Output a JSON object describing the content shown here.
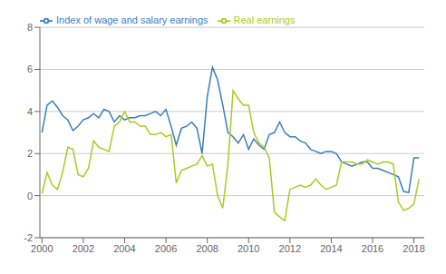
{
  "chart_data": {
    "type": "line",
    "x": [
      2000.0,
      2000.25,
      2000.5,
      2000.75,
      2001.0,
      2001.25,
      2001.5,
      2001.75,
      2002.0,
      2002.25,
      2002.5,
      2002.75,
      2003.0,
      2003.25,
      2003.5,
      2003.75,
      2004.0,
      2004.25,
      2004.5,
      2004.75,
      2005.0,
      2005.25,
      2005.5,
      2005.75,
      2006.0,
      2006.25,
      2006.5,
      2006.75,
      2007.0,
      2007.25,
      2007.5,
      2007.75,
      2008.0,
      2008.25,
      2008.5,
      2008.75,
      2009.0,
      2009.25,
      2009.5,
      2009.75,
      2010.0,
      2010.25,
      2010.5,
      2010.75,
      2011.0,
      2011.25,
      2011.5,
      2011.75,
      2012.0,
      2012.25,
      2012.5,
      2012.75,
      2013.0,
      2013.25,
      2013.5,
      2013.75,
      2014.0,
      2014.25,
      2014.5,
      2014.75,
      2015.0,
      2015.25,
      2015.5,
      2015.75,
      2016.0,
      2016.25,
      2016.5,
      2016.75,
      2017.0,
      2017.25,
      2017.5,
      2017.75,
      2018.0,
      2018.25
    ],
    "series": [
      {
        "name": "Index of wage and salary earnings",
        "color": "#3a7ebf",
        "values": [
          3.0,
          4.3,
          4.5,
          4.2,
          3.8,
          3.6,
          3.1,
          3.3,
          3.6,
          3.7,
          3.9,
          3.7,
          4.1,
          4.0,
          3.5,
          3.8,
          3.6,
          3.7,
          3.7,
          3.8,
          3.8,
          3.9,
          4.0,
          3.8,
          4.1,
          3.3,
          2.4,
          3.2,
          3.3,
          3.5,
          3.2,
          2.0,
          4.7,
          6.1,
          5.5,
          4.3,
          3.0,
          2.8,
          2.5,
          2.9,
          2.2,
          2.7,
          2.4,
          2.2,
          2.9,
          3.0,
          3.5,
          3.0,
          2.8,
          2.8,
          2.6,
          2.5,
          2.2,
          2.1,
          2.0,
          2.1,
          2.1,
          2.0,
          1.6,
          1.5,
          1.4,
          1.5,
          1.6,
          1.6,
          1.3,
          1.3,
          1.2,
          1.1,
          1.0,
          0.9,
          0.2,
          0.15,
          1.8,
          1.8
        ]
      },
      {
        "name": "Real earnings",
        "color": "#aacc22",
        "values": [
          0.1,
          1.1,
          0.5,
          0.3,
          1.1,
          2.3,
          2.2,
          1.0,
          0.9,
          1.3,
          2.6,
          2.3,
          2.2,
          2.1,
          3.3,
          3.5,
          4.0,
          3.5,
          3.5,
          3.3,
          3.3,
          2.9,
          2.9,
          3.0,
          2.8,
          2.9,
          0.6,
          1.2,
          1.3,
          1.4,
          1.5,
          1.9,
          1.4,
          1.5,
          0.0,
          -0.6,
          1.5,
          5.0,
          4.6,
          4.3,
          4.3,
          3.0,
          2.5,
          2.3,
          1.8,
          -0.8,
          -1.0,
          -1.2,
          0.3,
          0.4,
          0.5,
          0.4,
          0.5,
          0.8,
          0.5,
          0.3,
          0.4,
          0.5,
          1.6,
          1.6,
          1.6,
          1.5,
          1.5,
          1.7,
          1.6,
          1.5,
          1.6,
          1.6,
          1.5,
          -0.3,
          -0.7,
          -0.6,
          -0.4,
          0.8
        ]
      }
    ],
    "xlim": [
      1999.9,
      2018.5
    ],
    "xticks": [
      2000,
      2002,
      2004,
      2006,
      2008,
      2010,
      2012,
      2014,
      2016,
      2018
    ],
    "ylim": [
      -2,
      8
    ],
    "yticks": [
      -2,
      0,
      2,
      4,
      6,
      8
    ],
    "grid": true,
    "legend": "upper left"
  }
}
